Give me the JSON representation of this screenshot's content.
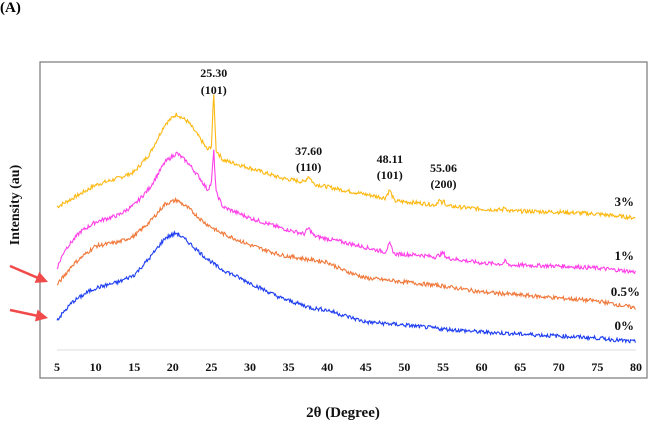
{
  "panel_label": "(A)",
  "chart_data": {
    "type": "line",
    "title": "",
    "xlabel": "2θ (Degree)",
    "ylabel": "Intensity (au)",
    "xlim": [
      5,
      80
    ],
    "xticks": [
      "5",
      "10",
      "15",
      "20",
      "25",
      "30",
      "35",
      "40",
      "45",
      "50",
      "55",
      "60",
      "65",
      "70",
      "75",
      "80"
    ],
    "grid": false,
    "legend": "inline-right",
    "series": [
      {
        "name": "3%",
        "color": "#FDB913",
        "points": [
          [
            5,
            143
          ],
          [
            8,
            156
          ],
          [
            10,
            165
          ],
          [
            13,
            172
          ],
          [
            15,
            178
          ],
          [
            17,
            196
          ],
          [
            19,
            226
          ],
          [
            20.5,
            236
          ],
          [
            22,
            228
          ],
          [
            23.5,
            212
          ],
          [
            24.5,
            200
          ],
          [
            25,
            204
          ],
          [
            25.3,
            257
          ],
          [
            25.6,
            200
          ],
          [
            26.5,
            190
          ],
          [
            30,
            182
          ],
          [
            34,
            172
          ],
          [
            37,
            168
          ],
          [
            37.6,
            174
          ],
          [
            38.3,
            166
          ],
          [
            42,
            160
          ],
          [
            47.5,
            152
          ],
          [
            48.1,
            160
          ],
          [
            48.7,
            149
          ],
          [
            52,
            147
          ],
          [
            54,
            145
          ],
          [
            54.5,
            150
          ],
          [
            55,
            145
          ],
          [
            55.06,
            150
          ],
          [
            55.5,
            144
          ],
          [
            60,
            141
          ],
          [
            62.7,
            140
          ],
          [
            63,
            143
          ],
          [
            63.5,
            139
          ],
          [
            70,
            138
          ],
          [
            75,
            136
          ],
          [
            80,
            132
          ]
        ]
      },
      {
        "name": "1%",
        "color": "#FF40E8",
        "points": [
          [
            5,
            82
          ],
          [
            6,
            100
          ],
          [
            8,
            118
          ],
          [
            10,
            128
          ],
          [
            13,
            135
          ],
          [
            15,
            145
          ],
          [
            17,
            162
          ],
          [
            19,
            188
          ],
          [
            20.5,
            197
          ],
          [
            22,
            187
          ],
          [
            23.5,
            172
          ],
          [
            24.5,
            160
          ],
          [
            25,
            167
          ],
          [
            25.3,
            200
          ],
          [
            25.6,
            158
          ],
          [
            26.5,
            143
          ],
          [
            30,
            132
          ],
          [
            34,
            122
          ],
          [
            37,
            116
          ],
          [
            37.6,
            122
          ],
          [
            38.3,
            114
          ],
          [
            42,
            108
          ],
          [
            47.5,
            98
          ],
          [
            48.1,
            106
          ],
          [
            48.7,
            96
          ],
          [
            52,
            95
          ],
          [
            54,
            93
          ],
          [
            55.06,
            97
          ],
          [
            55.5,
            92
          ],
          [
            60,
            87
          ],
          [
            62.7,
            86
          ],
          [
            63,
            89
          ],
          [
            63.5,
            85
          ],
          [
            70,
            84
          ],
          [
            75,
            82
          ],
          [
            80,
            78
          ]
        ]
      },
      {
        "name": "0.5%",
        "color": "#F0783A",
        "points": [
          [
            5,
            65
          ],
          [
            7,
            85
          ],
          [
            9,
            98
          ],
          [
            10,
            104
          ],
          [
            13,
            108
          ],
          [
            15,
            114
          ],
          [
            17,
            128
          ],
          [
            19,
            146
          ],
          [
            20.5,
            150
          ],
          [
            22,
            142
          ],
          [
            24,
            128
          ],
          [
            26,
            118
          ],
          [
            30,
            105
          ],
          [
            34,
            95
          ],
          [
            38,
            90
          ],
          [
            40,
            88
          ],
          [
            42,
            80
          ],
          [
            45,
            72
          ],
          [
            50,
            68
          ],
          [
            55,
            64
          ],
          [
            60,
            58
          ],
          [
            65,
            55
          ],
          [
            70,
            52
          ],
          [
            75,
            49
          ],
          [
            80,
            42
          ]
        ]
      },
      {
        "name": "0%",
        "color": "#1E3EF0",
        "points": [
          [
            5,
            30
          ],
          [
            7,
            48
          ],
          [
            9,
            58
          ],
          [
            10,
            62
          ],
          [
            13,
            68
          ],
          [
            15,
            75
          ],
          [
            17,
            92
          ],
          [
            19,
            112
          ],
          [
            20.5,
            117
          ],
          [
            22,
            108
          ],
          [
            24,
            94
          ],
          [
            26,
            82
          ],
          [
            30,
            67
          ],
          [
            34,
            52
          ],
          [
            38,
            42
          ],
          [
            40,
            40
          ],
          [
            42,
            35
          ],
          [
            45,
            28
          ],
          [
            50,
            25
          ],
          [
            55,
            21
          ],
          [
            60,
            18
          ],
          [
            65,
            16
          ],
          [
            70,
            14
          ],
          [
            75,
            12
          ],
          [
            80,
            8
          ]
        ]
      }
    ],
    "annotations": [
      {
        "x": 25.3,
        "line1": "25.30",
        "line2": "(101)"
      },
      {
        "x": 37.6,
        "line1": "37.60",
        "line2": "(110)"
      },
      {
        "x": 48.11,
        "line1": "48.11",
        "line2": "(101)"
      },
      {
        "x": 55.06,
        "line1": "55.06",
        "line2": "(200)"
      }
    ],
    "arrow_color": "#F04A4A"
  }
}
